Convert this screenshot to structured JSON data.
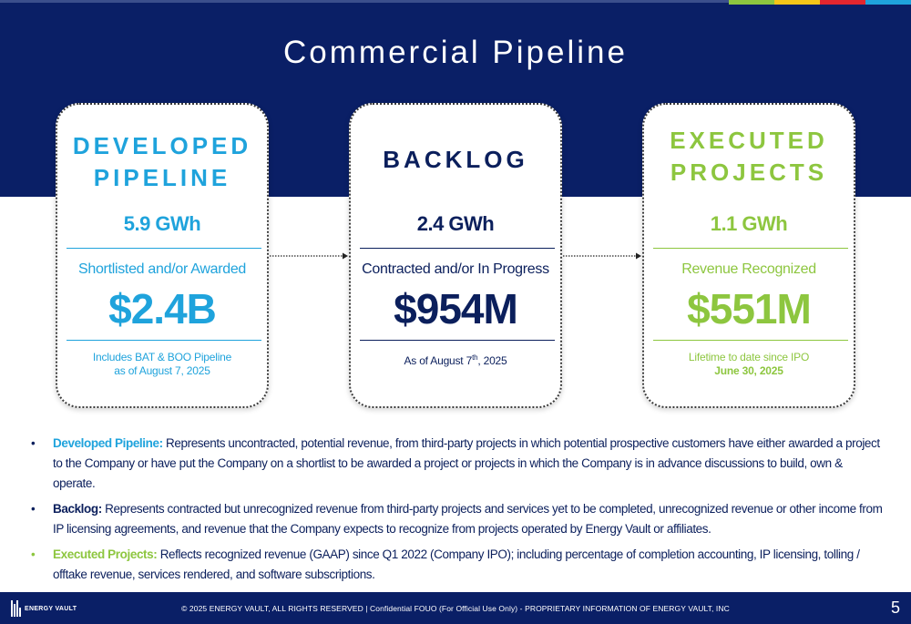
{
  "title": "Commercial Pipeline",
  "colors": {
    "navy": "#0a1f66",
    "blue": "#1fa3dc",
    "dark_blue": "#0b1f5c",
    "green": "#8dc63f",
    "accent_stripes": [
      "#8dc63f",
      "#f5c518",
      "#e3262e",
      "#1fa3dc"
    ]
  },
  "cards": [
    {
      "heading_line1": "DEVELOPED",
      "heading_line2": "PIPELINE",
      "gwh": "5.9 GWh",
      "subtitle": "Shortlisted and/or Awarded",
      "amount": "$2.4B",
      "note_line1": "Includes BAT & BOO Pipeline",
      "note_line2": "as of August 7, 2025"
    },
    {
      "heading_line1": "BACKLOG",
      "gwh": "2.4 GWh",
      "subtitle": "Contracted and/or In Progress",
      "amount": "$954M",
      "note_prefix": "As of August 7",
      "note_sup": "th",
      "note_suffix": ", 2025"
    },
    {
      "heading_line1": "EXECUTED",
      "heading_line2": "PROJECTS",
      "gwh": "1.1 GWh",
      "subtitle": "Revenue Recognized",
      "amount": "$551M",
      "note_line1": "Lifetime to date since IPO",
      "note_line2": "June 30, 2025"
    }
  ],
  "bullets": [
    {
      "term": "Developed Pipeline:",
      "text": " Represents uncontracted, potential revenue, from third-party projects in which potential prospective customers have either awarded a project to the Company or have put the Company on a shortlist to be awarded a project or projects in which the Company is in advance discussions to build, own & operate."
    },
    {
      "term": "Backlog:",
      "text": " Represents contracted but unrecognized revenue from third-party projects and services yet to be completed, unrecognized revenue or other income from IP licensing agreements, and revenue that the Company expects to recognize from projects operated by Energy Vault or affiliates."
    },
    {
      "term": "Executed Projects:",
      "text": " Reflects recognized revenue (GAAP) since Q1 2022 (Company IPO); including percentage of completion accounting, IP licensing, tolling / offtake revenue, services rendered, and software subscriptions."
    }
  ],
  "bullet_symbol": "•",
  "footer": {
    "logo_text": "ENERGY VAULT",
    "copyright": "© 2025 ENERGY VAULT, ALL RIGHTS RESERVED  |  Confidential FOUO (For Official Use Only) - PROPRIETARY INFORMATION OF ENERGY VAULT, INC",
    "page_number": "5"
  }
}
